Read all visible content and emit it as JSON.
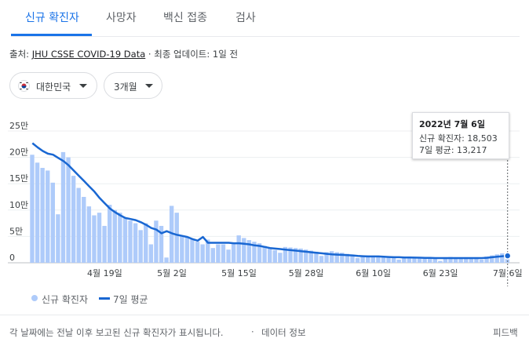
{
  "tabs": [
    {
      "label": "신규 확진자",
      "active": true
    },
    {
      "label": "사망자",
      "active": false
    },
    {
      "label": "백신 접종",
      "active": false
    },
    {
      "label": "검사",
      "active": false
    }
  ],
  "source": {
    "prefix": "출처:",
    "link": "JHU CSSE COVID-19 Data",
    "suffix": "· 최종 업데이트: 1일 전"
  },
  "filters": {
    "country": "대한민국",
    "period": "3개월"
  },
  "colors": {
    "accent": "#1a73e8",
    "bar": "#aecbfa",
    "line": "#1967d2"
  },
  "tooltip": {
    "date": "2022년 7월 6일",
    "cases": "신규 확진자: 18,503",
    "avg": "7일 평균: 13,217"
  },
  "legend": {
    "bars": "신규 확진자",
    "line": "7일 평균"
  },
  "footer": {
    "note": "각 날짜에는 전날 이후 보고된 신규 확진자가 표시됩니다.",
    "sep": "·",
    "data_info": "데이터 정보",
    "feedback": "피드백"
  },
  "chart_data": {
    "type": "bar",
    "title": "",
    "xlabel": "",
    "ylabel": "",
    "ylim": [
      0,
      250000
    ],
    "y_ticks": [
      0,
      50000,
      100000,
      150000,
      200000,
      250000
    ],
    "y_tick_labels": [
      "0",
      "5만",
      "10만",
      "15만",
      "20만",
      "25만"
    ],
    "x_tick_labels": [
      {
        "label": "4월 19일",
        "index": 14
      },
      {
        "label": "5월 2일",
        "index": 27
      },
      {
        "label": "5월 15일",
        "index": 40
      },
      {
        "label": "5월 28일",
        "index": 53
      },
      {
        "label": "6월 10일",
        "index": 66
      },
      {
        "label": "6월 23일",
        "index": 79
      },
      {
        "label": "7월 6일",
        "index": 92
      }
    ],
    "grid": true,
    "legend_position": "bottom-left",
    "series": [
      {
        "name": "신규 확진자",
        "type": "bar",
        "values": [
          205000,
          190000,
          180000,
          175000,
          152000,
          92000,
          210000,
          200000,
          165000,
          142000,
          125000,
          107000,
          90000,
          95000,
          70000,
          110000,
          100000,
          95000,
          85000,
          80000,
          75000,
          62000,
          75000,
          35000,
          80000,
          70000,
          10000,
          108000,
          95000,
          52000,
          48000,
          45000,
          40000,
          35000,
          44000,
          28000,
          35000,
          35000,
          25000,
          36000,
          52000,
          47000,
          43000,
          40000,
          37000,
          32000,
          29000,
          24000,
          19000,
          30000,
          29000,
          28000,
          27000,
          25000,
          23000,
          21000,
          13000,
          20000,
          22000,
          20000,
          19000,
          17000,
          15000,
          9000,
          12000,
          14000,
          13500,
          13000,
          12000,
          11500,
          11000,
          6000,
          10000,
          12000,
          11000,
          10500,
          10000,
          9500,
          9000,
          3500,
          9000,
          11000,
          10000,
          9500,
          9000,
          8500,
          8000,
          6000,
          12000,
          14000,
          16000,
          18000,
          18503
        ]
      },
      {
        "name": "7일 평균",
        "type": "line",
        "values": [
          227000,
          219000,
          212000,
          207000,
          205000,
          199000,
          193000,
          185000,
          175000,
          165000,
          155000,
          145000,
          135000,
          123000,
          113000,
          103000,
          96000,
          90000,
          85000,
          83000,
          81000,
          77000,
          72000,
          66000,
          63000,
          56000,
          60000,
          56000,
          53000,
          51000,
          49000,
          45000,
          42000,
          49000,
          38000,
          38000,
          38000,
          38000,
          38000,
          37000,
          37000,
          36000,
          35000,
          33000,
          32000,
          30000,
          28000,
          27000,
          26000,
          25000,
          24000,
          23000,
          22000,
          21000,
          20000,
          19000,
          18000,
          17000,
          16000,
          15500,
          15000,
          14500,
          14000,
          13000,
          12500,
          12000,
          12000,
          12000,
          11500,
          11000,
          10500,
          10500,
          10000,
          10000,
          9800,
          9600,
          9400,
          9200,
          9000,
          9000,
          9000,
          9000,
          9000,
          9000,
          9000,
          9000,
          9000,
          9000,
          9500,
          10500,
          11500,
          12500,
          13217
        ]
      }
    ],
    "highlight": {
      "date": "2022년 7월 6일",
      "index": 92
    }
  }
}
